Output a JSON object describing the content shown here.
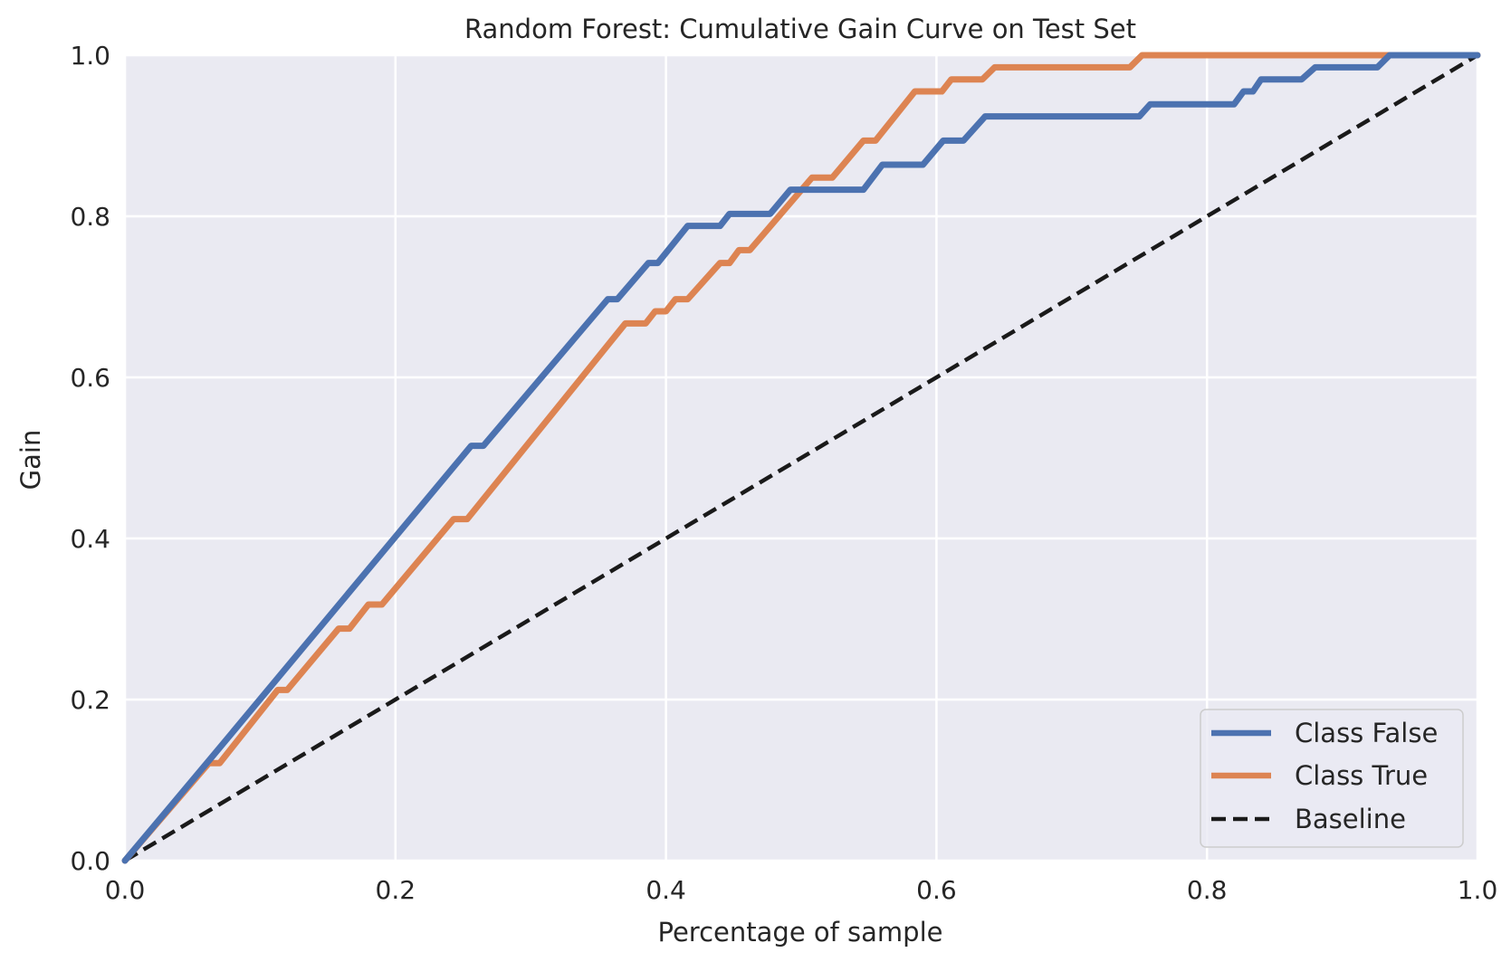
{
  "chart_data": {
    "type": "line",
    "title": "Random Forest: Cumulative Gain Curve on Test Set",
    "xlabel": "Percentage of sample",
    "ylabel": "Gain",
    "xlim": [
      0.0,
      1.0
    ],
    "ylim": [
      0.0,
      1.0
    ],
    "grid": true,
    "legend_position": "lower-right",
    "xticks": [
      0.0,
      0.2,
      0.4,
      0.6,
      0.8,
      1.0
    ],
    "yticks": [
      0.0,
      0.2,
      0.4,
      0.6,
      0.8,
      1.0
    ],
    "xtick_labels": [
      "0.0",
      "0.2",
      "0.4",
      "0.6",
      "0.8",
      "1.0"
    ],
    "ytick_labels": [
      "0.0",
      "0.2",
      "0.4",
      "0.6",
      "0.8",
      "1.0"
    ],
    "background_color": "#eaeaf2",
    "series": [
      {
        "name": "Class False",
        "color": "#4c72b0",
        "dash": "solid",
        "x": [
          0.0,
          0.065,
          0.256,
          0.265,
          0.357,
          0.364,
          0.387,
          0.394,
          0.416,
          0.44,
          0.447,
          0.477,
          0.492,
          0.546,
          0.56,
          0.59,
          0.605,
          0.62,
          0.636,
          0.75,
          0.758,
          0.82,
          0.827,
          0.834,
          0.84,
          0.87,
          0.88,
          0.926,
          0.935,
          1.0
        ],
        "y": [
          0.0,
          0.13,
          0.515,
          0.515,
          0.697,
          0.697,
          0.742,
          0.742,
          0.788,
          0.788,
          0.803,
          0.803,
          0.833,
          0.833,
          0.864,
          0.864,
          0.894,
          0.894,
          0.924,
          0.924,
          0.939,
          0.939,
          0.955,
          0.955,
          0.97,
          0.97,
          0.985,
          0.985,
          1.0,
          1.0
        ]
      },
      {
        "name": "Class True",
        "color": "#dd8452",
        "dash": "solid",
        "x": [
          0.0,
          0.062,
          0.07,
          0.113,
          0.12,
          0.158,
          0.166,
          0.18,
          0.19,
          0.243,
          0.253,
          0.37,
          0.385,
          0.392,
          0.4,
          0.407,
          0.416,
          0.44,
          0.447,
          0.454,
          0.462,
          0.508,
          0.523,
          0.546,
          0.555,
          0.584,
          0.604,
          0.611,
          0.634,
          0.643,
          0.743,
          0.752,
          1.0
        ],
        "y": [
          0.0,
          0.121,
          0.121,
          0.212,
          0.212,
          0.288,
          0.288,
          0.318,
          0.318,
          0.424,
          0.424,
          0.667,
          0.667,
          0.682,
          0.682,
          0.697,
          0.697,
          0.742,
          0.742,
          0.758,
          0.758,
          0.848,
          0.848,
          0.894,
          0.894,
          0.955,
          0.955,
          0.97,
          0.97,
          0.985,
          0.985,
          1.0,
          1.0
        ]
      },
      {
        "name": "Baseline",
        "color": "#1a1a1a",
        "dash": "dashed",
        "x": [
          0.0,
          1.0
        ],
        "y": [
          0.0,
          1.0
        ]
      }
    ]
  }
}
